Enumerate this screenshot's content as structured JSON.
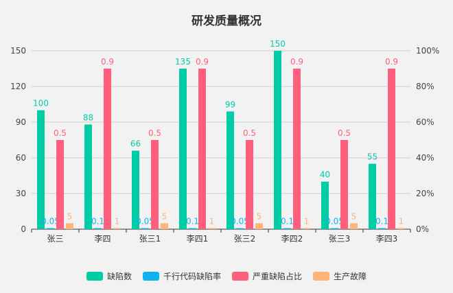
{
  "chart_data": {
    "type": "bar",
    "title": "研发质量概况",
    "categories": [
      "张三",
      "李四",
      "张三1",
      "李四1",
      "张三2",
      "李四2",
      "张三3",
      "李四3"
    ],
    "left_axis": {
      "ylim": [
        0,
        150
      ],
      "ticks": [
        "0",
        "30",
        "60",
        "90",
        "120",
        "150"
      ]
    },
    "right_axis": {
      "ylim": [
        0,
        1
      ],
      "ticks": [
        "0%",
        "20%",
        "40%",
        "60%",
        "80%",
        "100%"
      ]
    },
    "series": [
      {
        "name": "缺陷数",
        "color": "#00CCA6",
        "axis": "left",
        "values": [
          100,
          88,
          66,
          135,
          99,
          150,
          40,
          55
        ],
        "labels": [
          "100",
          "88",
          "66",
          "135",
          "99",
          "150",
          "40",
          "55"
        ]
      },
      {
        "name": "千行代码缺陷率",
        "color": "#0DB2EE",
        "axis": "left",
        "values": [
          0.05,
          0.1,
          0.05,
          0.1,
          0.05,
          0.1,
          0.05,
          0.1
        ],
        "labels": [
          "0.05",
          "0.1",
          "0.05",
          "0.1",
          "0.05",
          "0.1",
          "0.05",
          "0.1"
        ]
      },
      {
        "name": "严重缺陷占比",
        "color": "#FF5F7D",
        "axis": "right",
        "values": [
          0.5,
          0.9,
          0.5,
          0.9,
          0.5,
          0.9,
          0.5,
          0.9
        ],
        "labels": [
          "0.5",
          "0.9",
          "0.5",
          "0.9",
          "0.5",
          "0.9",
          "0.5",
          "0.9"
        ]
      },
      {
        "name": "生产故障",
        "color": "#FFB47A",
        "axis": "left",
        "values": [
          5,
          1,
          5,
          1,
          5,
          1,
          5,
          1
        ],
        "labels": [
          "5",
          "1",
          "5",
          "1",
          "5",
          "1",
          "5",
          "1"
        ]
      }
    ],
    "legend": "bottom",
    "grid": true
  }
}
